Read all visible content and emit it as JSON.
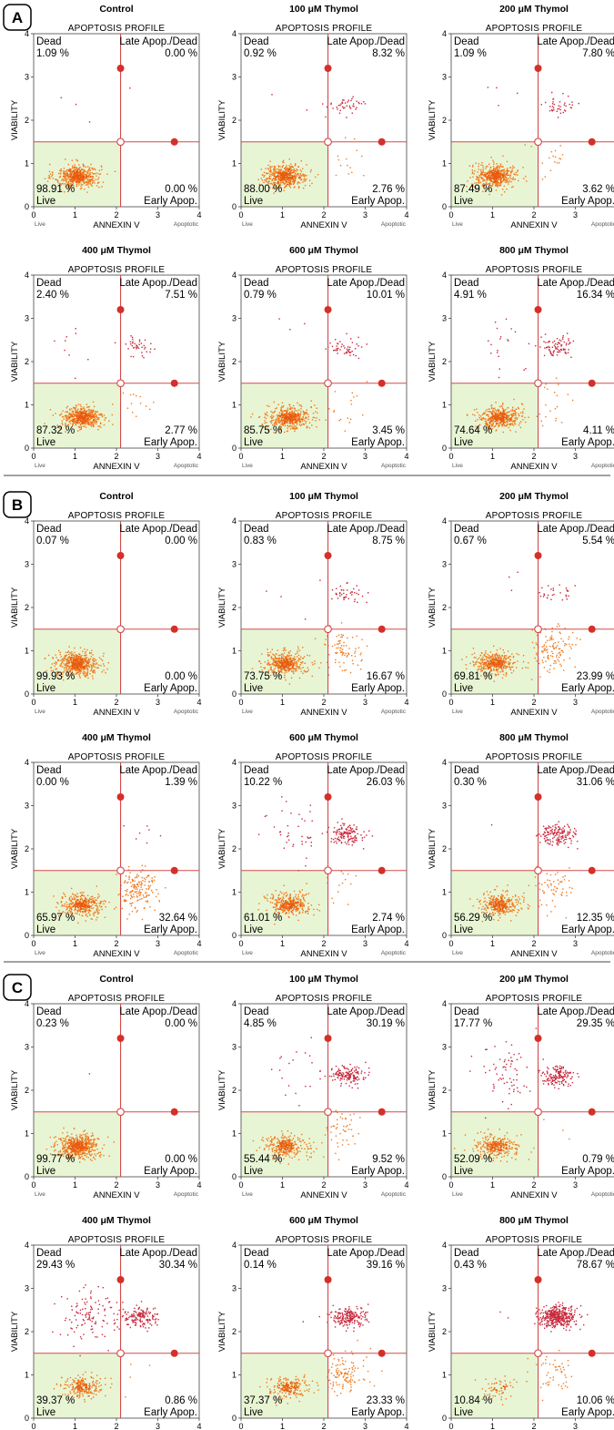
{
  "figure": {
    "subtitle": "APOPTOSIS PROFILE",
    "y_axis_label": "VIABILITY",
    "x_axis_label": "ANNEXIN V",
    "x_left_label": "Live",
    "x_right_label": "Apoptotic",
    "quadrant_names": {
      "dead": "Dead",
      "late": "Late Apop./Dead",
      "live": "Live",
      "early": "Early Apop."
    },
    "colors": {
      "gate": "#d24b4b",
      "live_events": "#f07a1e",
      "dead_events": "#c8283c",
      "live_region": "#e8f5d4"
    }
  },
  "chart_data": [
    {
      "panel": "A",
      "type": "scatter",
      "title": "Control",
      "xlim": [
        0,
        4
      ],
      "ylim": [
        0,
        4
      ],
      "x_ticks": [
        0,
        1,
        2,
        3,
        4
      ],
      "y_ticks": [
        0,
        1,
        2,
        3,
        4
      ],
      "quadrants": {
        "dead": "1.09 %",
        "late": "0.00 %",
        "live": "98.91 %",
        "early": "0.00 %"
      }
    },
    {
      "panel": "A",
      "type": "scatter",
      "title": "100 μM Thymol",
      "xlim": [
        0,
        4
      ],
      "ylim": [
        0,
        4
      ],
      "x_ticks": [
        0,
        1,
        2,
        3,
        4
      ],
      "y_ticks": [
        0,
        1,
        2,
        3,
        4
      ],
      "quadrants": {
        "dead": "0.92 %",
        "late": "8.32 %",
        "live": "88.00 %",
        "early": "2.76 %"
      }
    },
    {
      "panel": "A",
      "type": "scatter",
      "title": "200 μM Thymol",
      "xlim": [
        0,
        4
      ],
      "ylim": [
        0,
        4
      ],
      "x_ticks": [
        0,
        1,
        2,
        3,
        4
      ],
      "y_ticks": [
        0,
        1,
        2,
        3,
        4
      ],
      "quadrants": {
        "dead": "1.09 %",
        "late": "7.80 %",
        "live": "87.49 %",
        "early": "3.62 %"
      }
    },
    {
      "panel": "A",
      "type": "scatter",
      "title": "400 μM Thymol",
      "xlim": [
        0,
        4
      ],
      "ylim": [
        0,
        4
      ],
      "x_ticks": [
        0,
        1,
        2,
        3,
        4
      ],
      "y_ticks": [
        0,
        1,
        2,
        3,
        4
      ],
      "quadrants": {
        "dead": "2.40 %",
        "late": "7.51 %",
        "live": "87.32 %",
        "early": "2.77 %"
      }
    },
    {
      "panel": "A",
      "type": "scatter",
      "title": "600 μM Thymol",
      "xlim": [
        0,
        4
      ],
      "ylim": [
        0,
        4
      ],
      "x_ticks": [
        0,
        1,
        2,
        3,
        4
      ],
      "y_ticks": [
        0,
        1,
        2,
        3,
        4
      ],
      "quadrants": {
        "dead": "0.79 %",
        "late": "10.01 %",
        "live": "85.75 %",
        "early": "3.45 %"
      }
    },
    {
      "panel": "A",
      "type": "scatter",
      "title": "800 μM Thymol",
      "xlim": [
        0,
        4
      ],
      "ylim": [
        0,
        4
      ],
      "x_ticks": [
        0,
        1,
        2,
        3,
        4
      ],
      "y_ticks": [
        0,
        1,
        2,
        3,
        4
      ],
      "quadrants": {
        "dead": "4.91 %",
        "late": "16.34 %",
        "live": "74.64 %",
        "early": "4.11 %"
      }
    },
    {
      "panel": "B",
      "type": "scatter",
      "title": "Control",
      "xlim": [
        0,
        4
      ],
      "ylim": [
        0,
        4
      ],
      "x_ticks": [
        0,
        1,
        2,
        3,
        4
      ],
      "y_ticks": [
        0,
        1,
        2,
        3,
        4
      ],
      "quadrants": {
        "dead": "0.07 %",
        "late": "0.00 %",
        "live": "99.93 %",
        "early": "0.00 %"
      }
    },
    {
      "panel": "B",
      "type": "scatter",
      "title": "100 μM Thymol",
      "xlim": [
        0,
        4
      ],
      "ylim": [
        0,
        4
      ],
      "x_ticks": [
        0,
        1,
        2,
        3,
        4
      ],
      "y_ticks": [
        0,
        1,
        2,
        3,
        4
      ],
      "quadrants": {
        "dead": "0.83 %",
        "late": "8.75 %",
        "live": "73.75 %",
        "early": "16.67 %"
      }
    },
    {
      "panel": "B",
      "type": "scatter",
      "title": "200 μM Thymol",
      "xlim": [
        0,
        4
      ],
      "ylim": [
        0,
        4
      ],
      "x_ticks": [
        0,
        1,
        2,
        3,
        4
      ],
      "y_ticks": [
        0,
        1,
        2,
        3,
        4
      ],
      "quadrants": {
        "dead": "0.67 %",
        "late": "5.54 %",
        "live": "69.81 %",
        "early": "23.99 %"
      }
    },
    {
      "panel": "B",
      "type": "scatter",
      "title": "400 μM Thymol",
      "xlim": [
        0,
        4
      ],
      "ylim": [
        0,
        4
      ],
      "x_ticks": [
        0,
        1,
        2,
        3,
        4
      ],
      "y_ticks": [
        0,
        1,
        2,
        3,
        4
      ],
      "quadrants": {
        "dead": "0.00 %",
        "late": "1.39 %",
        "live": "65.97 %",
        "early": "32.64 %"
      }
    },
    {
      "panel": "B",
      "type": "scatter",
      "title": "600 μM Thymol",
      "xlim": [
        0,
        4
      ],
      "ylim": [
        0,
        4
      ],
      "x_ticks": [
        0,
        1,
        2,
        3,
        4
      ],
      "y_ticks": [
        0,
        1,
        2,
        3,
        4
      ],
      "quadrants": {
        "dead": "10.22 %",
        "late": "26.03 %",
        "live": "61.01 %",
        "early": "2.74 %"
      }
    },
    {
      "panel": "B",
      "type": "scatter",
      "title": "800 μM Thymol",
      "xlim": [
        0,
        4
      ],
      "ylim": [
        0,
        4
      ],
      "x_ticks": [
        0,
        1,
        2,
        3,
        4
      ],
      "y_ticks": [
        0,
        1,
        2,
        3,
        4
      ],
      "quadrants": {
        "dead": "0.30 %",
        "late": "31.06 %",
        "live": "56.29 %",
        "early": "12.35 %"
      }
    },
    {
      "panel": "C",
      "type": "scatter",
      "title": "Control",
      "xlim": [
        0,
        4
      ],
      "ylim": [
        0,
        4
      ],
      "x_ticks": [
        0,
        1,
        2,
        3,
        4
      ],
      "y_ticks": [
        0,
        1,
        2,
        3,
        4
      ],
      "quadrants": {
        "dead": "0.23 %",
        "late": "0.00 %",
        "live": "99.77 %",
        "early": "0.00 %"
      }
    },
    {
      "panel": "C",
      "type": "scatter",
      "title": "100 μM Thymol",
      "xlim": [
        0,
        4
      ],
      "ylim": [
        0,
        4
      ],
      "x_ticks": [
        0,
        1,
        2,
        3,
        4
      ],
      "y_ticks": [
        0,
        1,
        2,
        3,
        4
      ],
      "quadrants": {
        "dead": "4.85 %",
        "late": "30.19 %",
        "live": "55.44 %",
        "early": "9.52 %"
      }
    },
    {
      "panel": "C",
      "type": "scatter",
      "title": "200 μM Thymol",
      "xlim": [
        0,
        4
      ],
      "ylim": [
        0,
        4
      ],
      "x_ticks": [
        0,
        1,
        2,
        3,
        4
      ],
      "y_ticks": [
        0,
        1,
        2,
        3,
        4
      ],
      "quadrants": {
        "dead": "17.77 %",
        "late": "29.35 %",
        "live": "52.09 %",
        "early": "0.79 %"
      }
    },
    {
      "panel": "C",
      "type": "scatter",
      "title": "400 μM Thymol",
      "xlim": [
        0,
        4
      ],
      "ylim": [
        0,
        4
      ],
      "x_ticks": [
        0,
        1,
        2,
        3,
        4
      ],
      "y_ticks": [
        0,
        1,
        2,
        3,
        4
      ],
      "quadrants": {
        "dead": "29.43 %",
        "late": "30.34 %",
        "live": "39.37 %",
        "early": "0.86 %"
      }
    },
    {
      "panel": "C",
      "type": "scatter",
      "title": "600 μM Thymol",
      "xlim": [
        0,
        4
      ],
      "ylim": [
        0,
        4
      ],
      "x_ticks": [
        0,
        1,
        2,
        3,
        4
      ],
      "y_ticks": [
        0,
        1,
        2,
        3,
        4
      ],
      "quadrants": {
        "dead": "0.14 %",
        "late": "39.16 %",
        "live": "37.37 %",
        "early": "23.33 %"
      }
    },
    {
      "panel": "C",
      "type": "scatter",
      "title": "800 μM Thymol",
      "xlim": [
        0,
        4
      ],
      "ylim": [
        0,
        4
      ],
      "x_ticks": [
        0,
        1,
        2,
        3,
        4
      ],
      "y_ticks": [
        0,
        1,
        2,
        3,
        4
      ],
      "quadrants": {
        "dead": "0.43 %",
        "late": "78.67 %",
        "live": "10.84 %",
        "early": "10.06 %"
      }
    }
  ]
}
